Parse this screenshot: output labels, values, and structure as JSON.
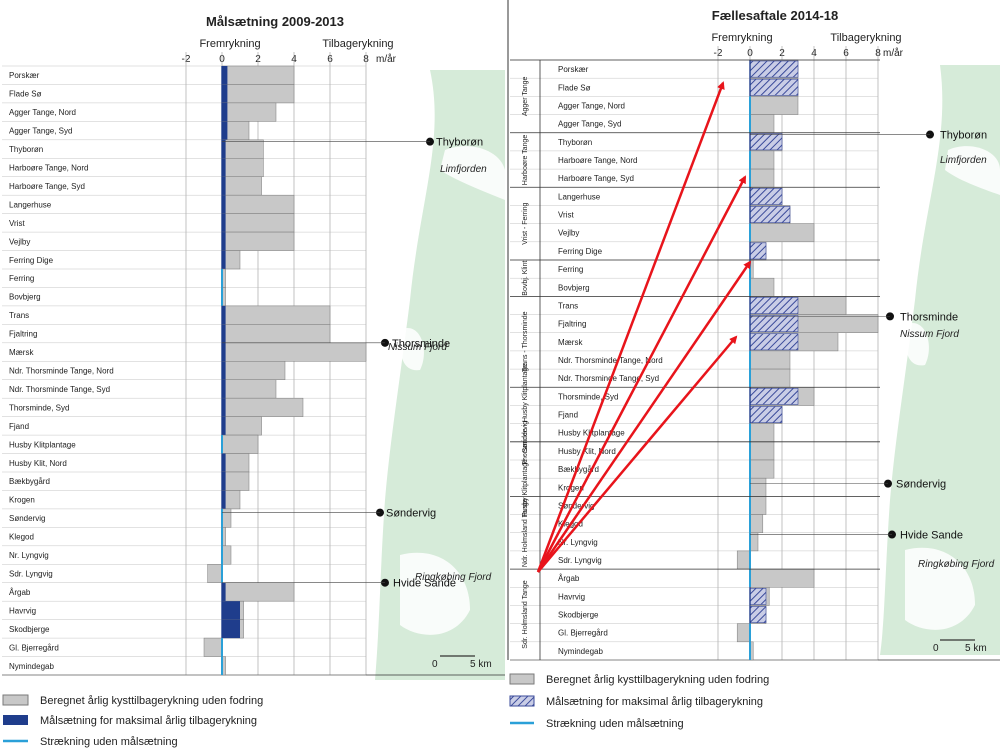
{
  "colors": {
    "bar_gray": "#c8c8c8",
    "bar_edge": "#7a7a7a",
    "target_blue": "#1f3d8c",
    "no_target": "#2aa0d8",
    "map_green": "#d6ebd9",
    "arrow_red": "#e8141b",
    "hatch": "#3a4a9a"
  },
  "left": {
    "title": "Målsætning 2009-2013",
    "axis_left_label": "Fremrykning",
    "axis_right_label": "Tilbagerykning",
    "ticks": [
      "-2",
      "0",
      "2",
      "4",
      "6",
      "8"
    ],
    "unit": "m/år",
    "towns": [
      "Thyborøn",
      "Thorsminde",
      "Søndervig",
      "Hvide Sande"
    ],
    "waters": [
      "Limfjorden",
      "Nissum Fjord",
      "Ringkøbing Fjord"
    ],
    "scale": [
      "0",
      "5 km"
    ],
    "legend": [
      {
        "text": "Beregnet årlig kysttilbagerykning uden fodring",
        "icon": "gray-box"
      },
      {
        "text": "Målsætning for maksimal årlig tilbagerykning",
        "icon": "blue-box"
      },
      {
        "text": "Strækning uden målsætning",
        "icon": "cyan-line"
      }
    ]
  },
  "right": {
    "title": "Fællesaftale 2014-18",
    "axis_left_label": "Fremrykning",
    "axis_right_label": "Tilbagerykning",
    "ticks": [
      "-2",
      "0",
      "2",
      "4",
      "6",
      "8"
    ],
    "unit": "m/år",
    "towns": [
      "Thyborøn",
      "Thorsminde",
      "Søndervig",
      "Hvide Sande"
    ],
    "waters": [
      "Limfjorden",
      "Nissum Fjord",
      "Ringkøbing Fjord"
    ],
    "scale": [
      "0",
      "5 km"
    ],
    "groups": [
      "Agger Tange",
      "Harboøre Tange",
      "Vrist - Ferring",
      "Bovbj. Klint",
      "Trans - Thorsminde",
      "Thorsminde - Husby Klitplantage",
      "Husby Klitplantage - Søndervig",
      "Ndr. Holmsland Tange",
      "Sdr. Holmsland Tange"
    ],
    "legend": [
      {
        "text": "Beregnet årlig kysttilbagerykning uden fodring",
        "icon": "gray-box"
      },
      {
        "text": "Målsætning for maksimal årlig tilbagerykning",
        "icon": "hatched-box"
      },
      {
        "text": "Strækning uden målsætning",
        "icon": "cyan-line"
      }
    ]
  },
  "chart_data": [
    {
      "type": "bar",
      "title": "Målsætning 2009-2013",
      "xlabel": "Fremrykning / Tilbagerykning",
      "unit": "m/år",
      "xlim": [
        -2,
        8
      ],
      "categories": [
        "Porskær",
        "Flade Sø",
        "Agger Tange, Nord",
        "Agger Tange, Syd",
        "Thyborøn",
        "Harboøre Tange, Nord",
        "Harboøre Tange, Syd",
        "Langerhuse",
        "Vrist",
        "Vejlby",
        "Ferring Dige",
        "Ferring",
        "Bovbjerg",
        "Trans",
        "Fjaltring",
        "Mærsk",
        "Ndr. Thorsminde Tange, Nord",
        "Ndr. Thorsminde Tange, Syd",
        "Thorsminde, Syd",
        "Fjand",
        "Husby Klitplantage",
        "Husby Klit, Nord",
        "Bækbygård",
        "Krogen",
        "Søndervig",
        "Klegod",
        "Nr. Lyngvig",
        "Sdr. Lyngvig",
        "Årgab",
        "Havrvig",
        "Skodbjerge",
        "Gl. Bjerregård",
        "Nymindegab"
      ],
      "series": [
        {
          "name": "Beregnet årlig kysttilbagerykning uden fodring",
          "values": [
            4,
            4,
            3,
            1.5,
            2.3,
            2.3,
            2.2,
            4,
            4,
            4,
            1,
            0.2,
            0.2,
            6,
            6,
            8,
            3.5,
            3,
            4.5,
            2.2,
            2,
            1.5,
            1.5,
            1,
            0.5,
            0.2,
            0.5,
            -0.8,
            4,
            1.2,
            1.2,
            -1,
            0.2
          ]
        },
        {
          "name": "Målsætning for maksimal årlig tilbagerykning",
          "values": [
            0.3,
            0.3,
            0.3,
            0.3,
            0.2,
            0.2,
            0.2,
            0.2,
            0.2,
            0.2,
            0.2,
            null,
            null,
            0.2,
            0.2,
            0.2,
            0.2,
            0.2,
            0.2,
            0.2,
            null,
            0.2,
            0.2,
            0.2,
            null,
            null,
            null,
            null,
            0.2,
            1,
            1,
            null,
            null
          ]
        }
      ]
    },
    {
      "type": "bar",
      "title": "Fællesaftale 2014-18",
      "xlabel": "Fremrykning / Tilbagerykning",
      "unit": "m/år",
      "xlim": [
        -2,
        8
      ],
      "categories": [
        "Porskær",
        "Flade Sø",
        "Agger Tange, Nord",
        "Agger Tange, Syd",
        "Thyborøn",
        "Harboøre Tange, Nord",
        "Harboøre Tange, Syd",
        "Langerhuse",
        "Vrist",
        "Vejlby",
        "Ferring Dige",
        "Ferring",
        "Bovbjerg",
        "Trans",
        "Fjaltring",
        "Mærsk",
        "Ndr. Thorsminde Tange, Nord",
        "Ndr. Thorsminde Tange, Syd",
        "Thorsminde, Syd",
        "Fjand",
        "Husby Klitplantage",
        "Husby Klit, Nord",
        "Bækbygård",
        "Krogen",
        "Søndervig",
        "Klegod",
        "Nr. Lyngvig",
        "Sdr. Lyngvig",
        "Årgab",
        "Havrvig",
        "Skodbjerge",
        "Gl. Bjerregård",
        "Nymindegab"
      ],
      "series": [
        {
          "name": "Beregnet årlig kysttilbagerykning uden fodring",
          "values": [
            3,
            3,
            3,
            1.5,
            2,
            1.5,
            1.5,
            2,
            2.5,
            4,
            1,
            0.2,
            1.5,
            6,
            8,
            5.5,
            2.5,
            2.5,
            4,
            2,
            1.5,
            1.5,
            1.5,
            1,
            1,
            0.8,
            0.5,
            -0.8,
            4,
            1.2,
            1,
            -0.8,
            0.2
          ]
        },
        {
          "name": "Målsætning for maksimal årlig tilbagerykning",
          "values": [
            3,
            3,
            null,
            null,
            2,
            null,
            null,
            2,
            2.5,
            null,
            1,
            null,
            null,
            3,
            3,
            3,
            null,
            null,
            3,
            2,
            null,
            null,
            null,
            null,
            null,
            null,
            null,
            null,
            null,
            1,
            1,
            null,
            null
          ]
        }
      ]
    }
  ]
}
